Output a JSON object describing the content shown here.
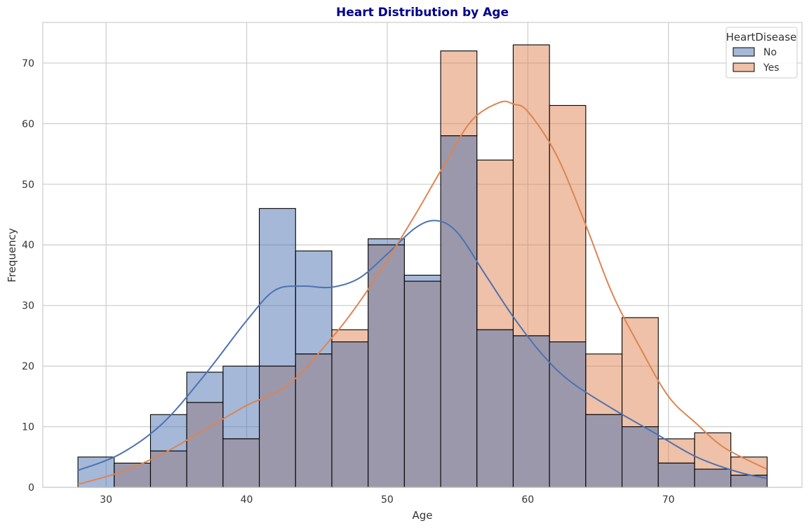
{
  "chart_data": {
    "type": "bar",
    "title": "Heart Distribution by Age",
    "xlabel": "Age",
    "ylabel": "Frequency",
    "xlim": [
      25.5,
      79.5
    ],
    "ylim": [
      0,
      76.7
    ],
    "xticks": [
      30,
      40,
      50,
      60,
      70
    ],
    "yticks": [
      0,
      10,
      20,
      30,
      40,
      50,
      60,
      70
    ],
    "grid": true,
    "legend_title": "HeartDisease",
    "legend_position": "top-right",
    "bin_edges": [
      28,
      30.58,
      33.16,
      35.74,
      38.32,
      40.9,
      43.48,
      46.06,
      48.64,
      51.22,
      53.8,
      56.38,
      58.96,
      61.54,
      64.12,
      66.7,
      69.28,
      71.86,
      74.44,
      77.02
    ],
    "series": [
      {
        "name": "No",
        "color": "#4c72b0",
        "values": [
          5,
          4,
          12,
          19,
          20,
          46,
          39,
          24,
          41,
          35,
          58,
          26,
          25,
          24,
          12,
          10,
          4,
          3,
          2
        ],
        "kde_x": [
          28,
          31,
          34,
          37,
          40,
          42,
          44,
          46,
          48,
          50,
          52,
          53.5,
          55,
          57,
          59,
          61,
          63,
          66,
          69,
          72,
          75,
          77
        ],
        "kde_y": [
          2.8,
          5.5,
          10.5,
          18.5,
          27.5,
          32.5,
          33.2,
          33.0,
          34.5,
          38.5,
          42.8,
          44.0,
          42.0,
          35.0,
          28.0,
          22.0,
          17.5,
          13.0,
          9.0,
          5.0,
          2.5,
          1.5
        ]
      },
      {
        "name": "Yes",
        "color": "#dd8452",
        "values": [
          0,
          4,
          6,
          14,
          8,
          20,
          22,
          26,
          40,
          34,
          72,
          54,
          73,
          63,
          22,
          28,
          8,
          9,
          5
        ],
        "kde_x": [
          28,
          31,
          34,
          37,
          40,
          43,
          46,
          48,
          50,
          52,
          54,
          56,
          58,
          59,
          60,
          62,
          64,
          66,
          68,
          70,
          72,
          74,
          77
        ],
        "kde_y": [
          0.5,
          2.5,
          5.5,
          9.5,
          13.5,
          17.0,
          24.5,
          30.5,
          37.5,
          45.0,
          53.0,
          60.5,
          63.5,
          63.2,
          62.0,
          55.0,
          44.0,
          32.0,
          23.0,
          15.0,
          10.5,
          6.5,
          3.0
        ]
      }
    ]
  },
  "colors": {
    "title": "#00008b",
    "grid": "#cccccc",
    "frame": "#cccccc",
    "overlap": "#9b98ab",
    "edge": "#000000"
  }
}
